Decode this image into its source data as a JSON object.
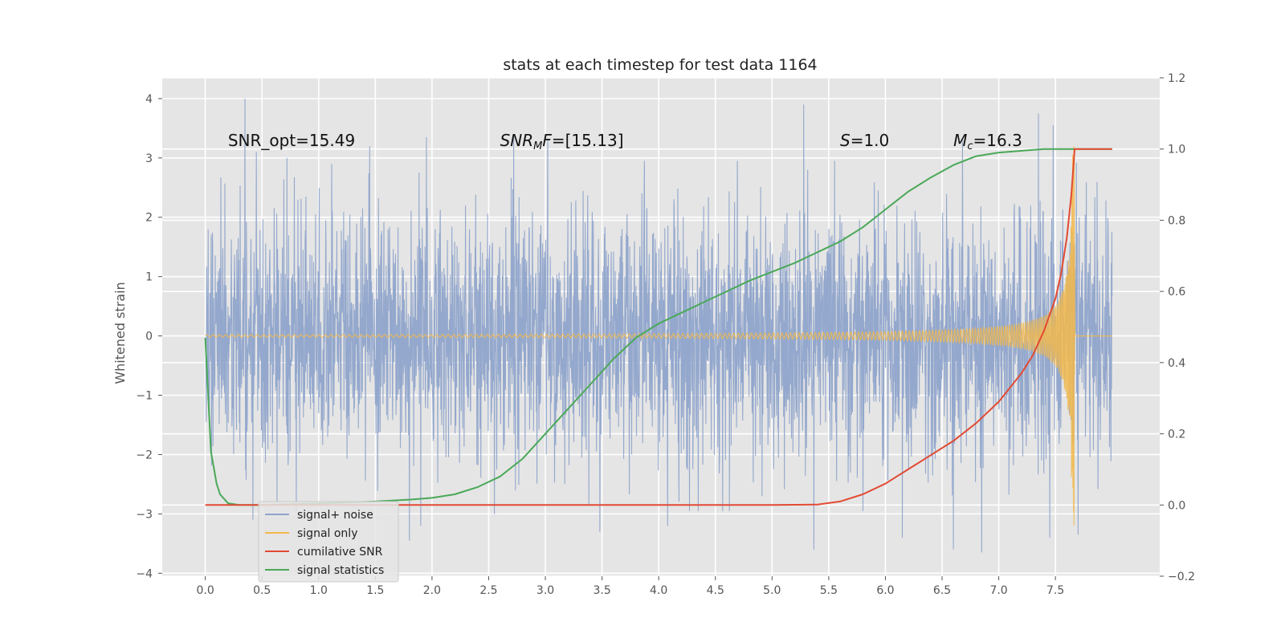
{
  "chart_data": {
    "type": "line",
    "title": "stats at each timestep for test data 1164",
    "ylabel": "Whitened strain",
    "xlabel": "",
    "grid": true,
    "xlim": [
      -0.38,
      8.42
    ],
    "ylim": [
      -4.05,
      4.35
    ],
    "y2lim": [
      -0.2,
      1.2
    ],
    "xticks": [
      "0.0",
      "0.5",
      "1.0",
      "1.5",
      "2.0",
      "2.5",
      "3.0",
      "3.5",
      "4.0",
      "4.5",
      "5.0",
      "5.5",
      "6.0",
      "6.5",
      "7.0",
      "7.5"
    ],
    "yticks": [
      "4",
      "3",
      "2",
      "1",
      "0",
      "−1",
      "−2",
      "−3",
      "−4"
    ],
    "y2ticks": [
      "1.2",
      "1.0",
      "0.8",
      "0.6",
      "0.4",
      "0.2",
      "0.0",
      "−0.2"
    ],
    "annotations": [
      {
        "text": "SNR_opt=15.49",
        "x": 0.2
      },
      {
        "html": "<tspan font-style='italic'>SNR</tspan><tspan font-style='italic' font-size='13' dy='4'>M</tspan><tspan font-style='italic' dy='-4'>F</tspan><tspan>=[15.13]</tspan>",
        "x": 2.6
      },
      {
        "html": "<tspan font-style='italic'>S</tspan><tspan>=1.0</tspan>",
        "x": 5.6
      },
      {
        "html": "<tspan font-style='italic'>M</tspan><tspan font-style='italic' font-size='13' dy='4'>c</tspan><tspan dy='-4'>=16.3</tspan>",
        "x": 6.6
      }
    ],
    "legend": {
      "placement": "lower-left",
      "entries": [
        {
          "name": "signal+ noise",
          "color": "#8fa4cb"
        },
        {
          "name": "signal only",
          "color": "#f2b84b"
        },
        {
          "name": "cumilative SNR",
          "color": "#e24a33"
        },
        {
          "name": "signal statistics",
          "color": "#4aa858"
        }
      ]
    },
    "series": [
      {
        "name": "signal+ noise",
        "axis": "left",
        "color": "#8fa4cb",
        "description": "whitened strain noise, 0 to 8 s, amplitude ~N(0,1), peaks near 4 at x≈0.35",
        "x_range": [
          0,
          8
        ],
        "noise_std": 1.0,
        "seed": 1164,
        "peaks": [
          [
            0.35,
            4.0
          ],
          [
            0.45,
            3.1
          ],
          [
            0.72,
            3.0
          ],
          [
            1.45,
            3.2
          ],
          [
            1.95,
            3.35
          ],
          [
            2.72,
            3.35
          ],
          [
            3.02,
            3.3
          ],
          [
            5.28,
            3.9
          ],
          [
            6.68,
            3.3
          ],
          [
            7.35,
            3.75
          ],
          [
            7.48,
            3.55
          ],
          [
            0.42,
            -3.1
          ],
          [
            1.8,
            -3.45
          ],
          [
            1.9,
            -3.2
          ],
          [
            2.55,
            -3.0
          ],
          [
            3.48,
            -3.3
          ],
          [
            4.08,
            -3.2
          ],
          [
            5.37,
            -3.6
          ],
          [
            6.15,
            -3.4
          ],
          [
            6.6,
            -3.6
          ],
          [
            6.85,
            -3.65
          ],
          [
            7.45,
            -3.4
          ],
          [
            7.7,
            -3.35
          ]
        ]
      },
      {
        "name": "signal only",
        "axis": "left",
        "color": "#f2b84b",
        "description": "chirp signal, amplitude growing from 0 near 5.4 s to ~3.2 at merger 7.67 s",
        "x_range": [
          0,
          8
        ],
        "merger_time": 7.67,
        "peak_amplitude": 3.2
      },
      {
        "name": "cumilative SNR",
        "axis": "right",
        "color": "#e24a33",
        "x": [
          0.0,
          0.5,
          1.0,
          1.5,
          2.0,
          2.5,
          3.0,
          3.5,
          4.0,
          4.5,
          5.0,
          5.4,
          5.6,
          5.8,
          6.0,
          6.2,
          6.4,
          6.6,
          6.8,
          7.0,
          7.1,
          7.2,
          7.3,
          7.4,
          7.5,
          7.55,
          7.6,
          7.64,
          7.67,
          8.0
        ],
        "y": [
          0.0,
          0.0,
          0.0,
          0.0,
          0.0,
          0.0,
          0.0,
          0.0,
          0.0,
          0.0,
          0.0,
          0.001,
          0.01,
          0.03,
          0.06,
          0.1,
          0.14,
          0.18,
          0.23,
          0.29,
          0.33,
          0.37,
          0.42,
          0.49,
          0.58,
          0.65,
          0.75,
          0.87,
          1.0,
          1.0
        ]
      },
      {
        "name": "signal statistics",
        "axis": "right",
        "color": "#4aa858",
        "x": [
          0.0,
          0.05,
          0.1,
          0.13,
          0.2,
          0.3,
          0.5,
          1.0,
          1.5,
          1.8,
          2.0,
          2.2,
          2.4,
          2.6,
          2.8,
          3.0,
          3.2,
          3.4,
          3.6,
          3.8,
          4.0,
          4.2,
          4.4,
          4.6,
          4.8,
          5.0,
          5.2,
          5.4,
          5.6,
          5.8,
          6.0,
          6.2,
          6.4,
          6.6,
          6.8,
          7.0,
          7.2,
          7.4,
          7.6,
          8.0
        ],
        "y": [
          0.47,
          0.15,
          0.06,
          0.03,
          0.005,
          0.0,
          0.0,
          0.004,
          0.01,
          0.015,
          0.02,
          0.03,
          0.05,
          0.08,
          0.13,
          0.2,
          0.27,
          0.34,
          0.41,
          0.47,
          0.51,
          0.54,
          0.57,
          0.6,
          0.63,
          0.655,
          0.68,
          0.71,
          0.74,
          0.78,
          0.83,
          0.88,
          0.92,
          0.955,
          0.98,
          0.99,
          0.995,
          1.0,
          1.0,
          1.0
        ]
      }
    ]
  }
}
